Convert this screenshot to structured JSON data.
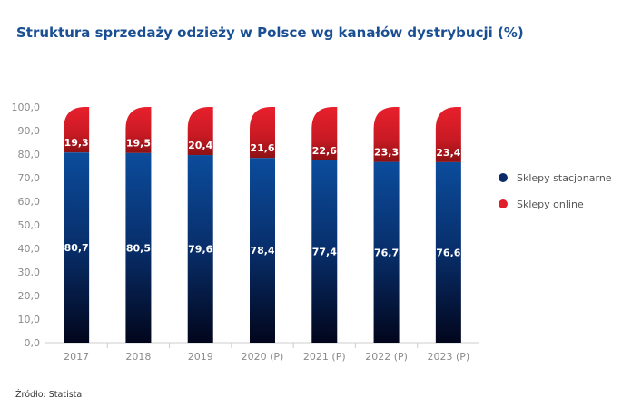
{
  "chart_data": {
    "type": "bar",
    "stacked": true,
    "title": "Struktura sprzedaży odzieży w Polsce wg kanałów dystrybucji (%)",
    "categories": [
      "2017",
      "2018",
      "2019",
      "2020  (P)",
      "2021 (P)",
      "2022 (P)",
      "2023 (P)"
    ],
    "series": [
      {
        "name": "Sklepy stacjonarne",
        "values": [
          80.7,
          80.5,
          79.6,
          78.4,
          77.4,
          76.7,
          76.6
        ],
        "labels": [
          "80,7",
          "80,5",
          "79,6",
          "78,4",
          "77,4",
          "76,7",
          "76,6"
        ],
        "color": "#0b4a9a"
      },
      {
        "name": "Sklepy online",
        "values": [
          19.3,
          19.5,
          20.4,
          21.6,
          22.6,
          23.3,
          23.4
        ],
        "labels": [
          "19,3",
          "19,5",
          "20,4",
          "21,6",
          "22,6",
          "23,3",
          "23,4"
        ],
        "color": "#e01f2b"
      }
    ],
    "yticks": [
      "0,0",
      "10,0",
      "20,0",
      "30,0",
      "40,0",
      "50,0",
      "60,0",
      "70,0",
      "80,0",
      "90,0",
      "100,0"
    ],
    "ylim": [
      0,
      100
    ],
    "grid": false,
    "legend": "right"
  },
  "source": "Źródło: Statista"
}
